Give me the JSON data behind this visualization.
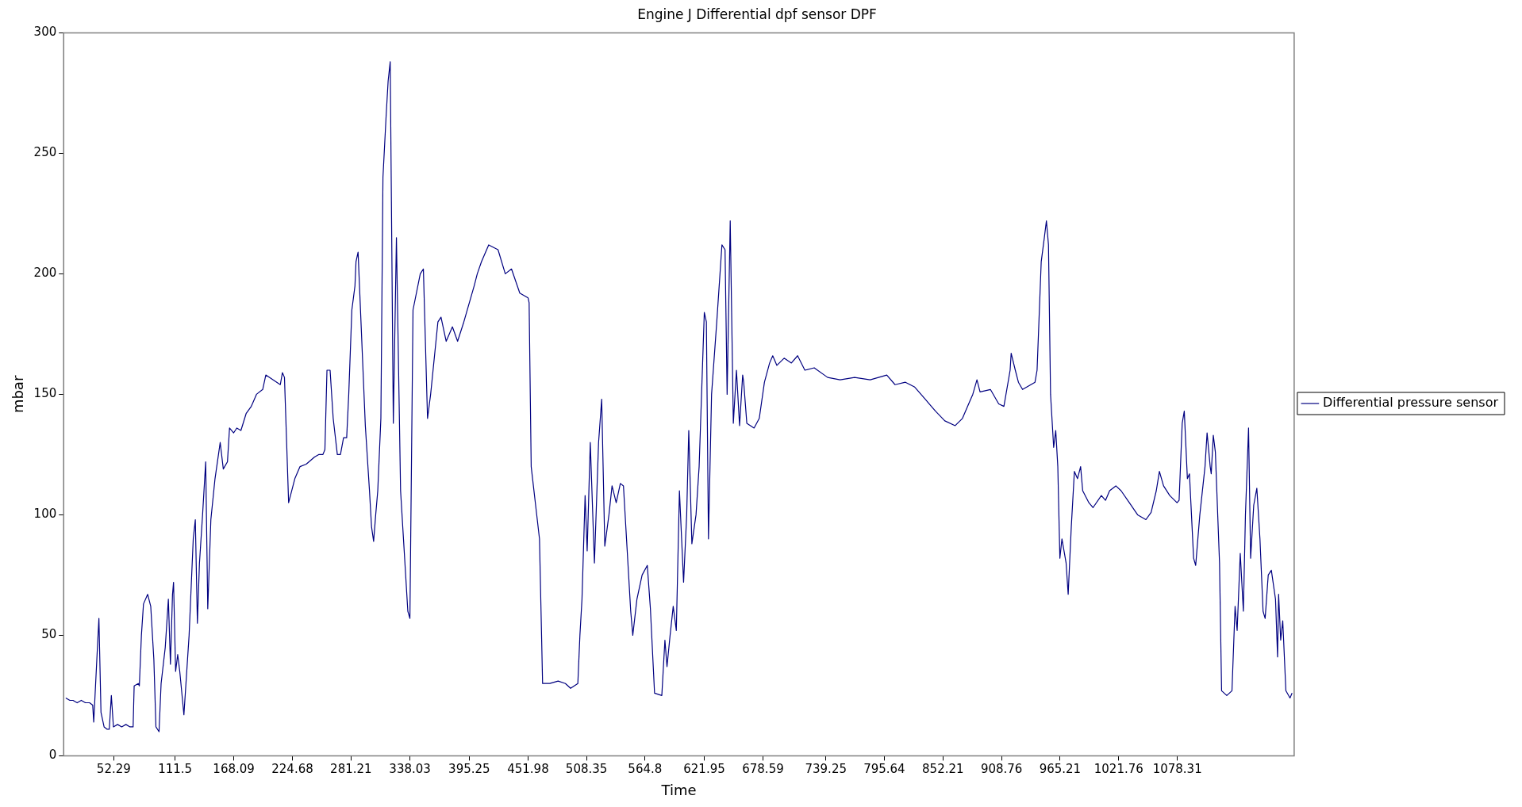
{
  "chart_data": {
    "type": "line",
    "title": "Engine J Differential dpf sensor DPF",
    "xlabel": "Time",
    "ylabel": "mbar",
    "legend": "right",
    "marker": "none",
    "line_style": "solid",
    "xlim": [
      4,
      1191
    ],
    "xticks": [
      52.29,
      111.5,
      168.09,
      224.68,
      281.21,
      338.03,
      395.25,
      451.98,
      508.35,
      564.8,
      621.95,
      678.59,
      739.25,
      795.64,
      852.21,
      908.76,
      965.21,
      1021.76,
      1078.31
    ],
    "ylim": [
      0,
      300
    ],
    "yticks": [
      0,
      50,
      100,
      150,
      200,
      250,
      300
    ],
    "series": [
      {
        "name": "Differential pressure sensor",
        "color": "#000080",
        "x": [
          6,
          10,
          13,
          17,
          21,
          25,
          29,
          32,
          33,
          36,
          38,
          40,
          43,
          46,
          48,
          50,
          52,
          56,
          60,
          64,
          68,
          71,
          72,
          76,
          77,
          79,
          81,
          85,
          88,
          91,
          93,
          96,
          98,
          102,
          105,
          107,
          109,
          110,
          112,
          114,
          116,
          120,
          125,
          129,
          131,
          133,
          135,
          138,
          141,
          143,
          146,
          150,
          155,
          158,
          162,
          164,
          168,
          171,
          175,
          180,
          185,
          190,
          196,
          199,
          213,
          215,
          217,
          221,
          227,
          232,
          238,
          246,
          250,
          254,
          256,
          258,
          261,
          264,
          268,
          271,
          274,
          277,
          279,
          282,
          285,
          286,
          288,
          295,
          299,
          301,
          303,
          305,
          307,
          310,
          312,
          315,
          317,
          319,
          322,
          325,
          329,
          336,
          338,
          341,
          348,
          351,
          355,
          358,
          365,
          368,
          373,
          379,
          384,
          390,
          400,
          403,
          407,
          414,
          423,
          430,
          436,
          444,
          452,
          453,
          455,
          459,
          463,
          466,
          473,
          481,
          488,
          493,
          500,
          502,
          504,
          507,
          509,
          512,
          516,
          520,
          523,
          526,
          530,
          533,
          537,
          541,
          544,
          551,
          553,
          557,
          562,
          567,
          570,
          574,
          581,
          584,
          586,
          589,
          592,
          595,
          598,
          602,
          605,
          607,
          610,
          614,
          617,
          622,
          624,
          626,
          629,
          634,
          639,
          642,
          644,
          647,
          650,
          653,
          656,
          659,
          660,
          663,
          670,
          675,
          680,
          685,
          688,
          692,
          699,
          706,
          712,
          719,
          728,
          741,
          753,
          767,
          782,
          798,
          806,
          816,
          825,
          835,
          845,
          854,
          864,
          871,
          877,
          881,
          885,
          888,
          898,
          906,
          911,
          917,
          918,
          922,
          925,
          929,
          937,
          941,
          943,
          947,
          950,
          952,
          954,
          956,
          959,
          961,
          963,
          965,
          967,
          971,
          973,
          976,
          979,
          982,
          985,
          987,
          993,
          997,
          1005,
          1009,
          1013,
          1019,
          1024,
          1032,
          1040,
          1048,
          1053,
          1058,
          1061,
          1065,
          1071,
          1078,
          1080,
          1083,
          1085,
          1088,
          1090,
          1094,
          1096,
          1100,
          1105,
          1107,
          1110,
          1111,
          1113,
          1115,
          1119,
          1121,
          1126,
          1131,
          1134,
          1136,
          1139,
          1142,
          1144,
          1147,
          1149,
          1152,
          1155,
          1158,
          1161,
          1163,
          1166,
          1169,
          1173,
          1175,
          1176,
          1178,
          1180,
          1183,
          1187,
          1189
        ],
        "values": [
          24,
          23,
          23,
          22,
          23,
          22,
          22,
          21,
          14,
          40,
          57,
          18,
          12,
          11,
          11,
          25,
          12,
          13,
          12,
          13,
          12,
          12,
          29,
          30,
          29,
          50,
          63,
          67,
          62,
          40,
          12,
          10,
          30,
          45,
          65,
          38,
          67,
          72,
          35,
          42,
          35,
          17,
          50,
          90,
          98,
          55,
          80,
          100,
          122,
          61,
          98,
          115,
          130,
          119,
          122,
          136,
          134,
          136,
          135,
          142,
          145,
          150,
          152,
          158,
          154,
          159,
          157,
          105,
          115,
          120,
          121,
          124,
          125,
          125,
          127,
          160,
          160,
          140,
          125,
          125,
          132,
          132,
          150,
          185,
          195,
          205,
          209,
          137,
          110,
          95,
          89,
          100,
          110,
          140,
          240,
          265,
          280,
          288,
          138,
          215,
          110,
          60,
          57,
          185,
          200,
          202,
          140,
          150,
          180,
          182,
          172,
          178,
          172,
          180,
          195,
          200,
          205,
          212,
          210,
          200,
          202,
          192,
          190,
          188,
          120,
          105,
          90,
          30,
          30,
          31,
          30,
          28,
          30,
          50,
          65,
          108,
          85,
          130,
          80,
          130,
          148,
          87,
          100,
          112,
          105,
          113,
          112,
          60,
          50,
          65,
          75,
          79,
          61,
          26,
          25,
          48,
          37,
          50,
          62,
          52,
          110,
          72,
          100,
          135,
          88,
          100,
          120,
          184,
          180,
          90,
          150,
          180,
          212,
          210,
          150,
          222,
          138,
          160,
          137,
          158,
          155,
          138,
          136,
          140,
          155,
          163,
          166,
          162,
          165,
          163,
          166,
          160,
          161,
          157,
          156,
          157,
          156,
          158,
          154,
          155,
          153,
          148,
          143,
          139,
          137,
          140,
          146,
          150,
          156,
          151,
          152,
          146,
          145,
          160,
          167,
          160,
          155,
          152,
          154,
          155,
          160,
          205,
          215,
          222,
          212,
          150,
          128,
          135,
          120,
          82,
          90,
          80,
          67,
          95,
          118,
          115,
          120,
          110,
          105,
          103,
          108,
          106,
          110,
          112,
          110,
          105,
          100,
          98,
          101,
          110,
          118,
          112,
          108,
          105,
          106,
          138,
          143,
          115,
          117,
          82,
          79,
          100,
          120,
          134,
          120,
          117,
          133,
          126,
          80,
          27,
          25,
          27,
          62,
          52,
          84,
          60,
          100,
          136,
          82,
          104,
          111,
          90,
          60,
          57,
          75,
          77,
          65,
          41,
          67,
          48,
          56,
          27,
          24,
          26
        ]
      }
    ]
  }
}
